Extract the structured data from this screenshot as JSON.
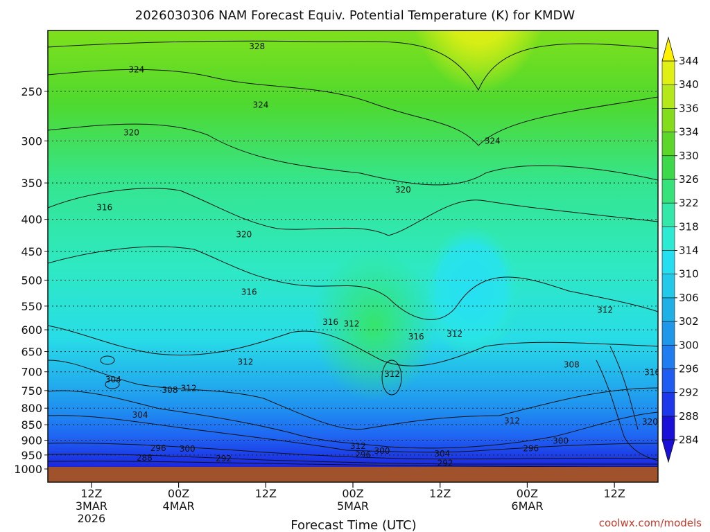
{
  "chart_data": {
    "type": "heatmap",
    "title": "2026030306 NAM Forecast Equiv. Potential Temperature (K) for KMDW",
    "xlabel": "Forecast Time (UTC)",
    "credit": "coolwx.com/models",
    "x_ticks": [
      {
        "hours": 6,
        "lines": [
          "12Z",
          "3MAR",
          "2026"
        ]
      },
      {
        "hours": 18,
        "lines": [
          "00Z",
          "4MAR"
        ]
      },
      {
        "hours": 30,
        "lines": [
          "12Z"
        ]
      },
      {
        "hours": 42,
        "lines": [
          "00Z",
          "5MAR"
        ]
      },
      {
        "hours": 54,
        "lines": [
          "12Z"
        ]
      },
      {
        "hours": 66,
        "lines": [
          "00Z",
          "6MAR"
        ]
      },
      {
        "hours": 78,
        "lines": [
          "12Z"
        ]
      }
    ],
    "y_axis": {
      "scale": "log",
      "unit": "hPa",
      "range": [
        1000,
        200
      ]
    },
    "y_ticks": [
      250,
      300,
      350,
      400,
      450,
      500,
      550,
      600,
      650,
      700,
      750,
      800,
      850,
      900,
      950,
      1000
    ],
    "colorbar": {
      "levels": [
        284,
        288,
        292,
        296,
        300,
        302,
        306,
        310,
        314,
        318,
        322,
        326,
        330,
        334,
        336,
        340,
        344
      ],
      "colors": [
        "#1a0fd6",
        "#1d37ea",
        "#1f5cf2",
        "#1f7df0",
        "#1f98ec",
        "#1fb1e6",
        "#22c9e8",
        "#25dff0",
        "#2cebd2",
        "#33e8a8",
        "#36e37a",
        "#3ed84b",
        "#5cd62a",
        "#84dd1c",
        "#b4e81a",
        "#e0f015",
        "#fff200"
      ]
    },
    "contour_labels": [
      {
        "text": "328",
        "hours": 28.8,
        "p": 212
      },
      {
        "text": "324",
        "hours": 12.2,
        "p": 231
      },
      {
        "text": "324",
        "hours": 29.3,
        "p": 263
      },
      {
        "text": "324",
        "hours": 61.2,
        "p": 300
      },
      {
        "text": "320",
        "hours": 11.5,
        "p": 291
      },
      {
        "text": "320",
        "hours": 48.9,
        "p": 359
      },
      {
        "text": "320",
        "hours": 27.0,
        "p": 423
      },
      {
        "text": "316",
        "hours": 7.8,
        "p": 383
      },
      {
        "text": "316",
        "hours": 27.7,
        "p": 522
      },
      {
        "text": "316",
        "hours": 38.9,
        "p": 583
      },
      {
        "text": "316",
        "hours": 50.7,
        "p": 615
      },
      {
        "text": "316",
        "hours": 83.2,
        "p": 701
      },
      {
        "text": "312",
        "hours": 41.8,
        "p": 587
      },
      {
        "text": "312",
        "hours": 27.2,
        "p": 675
      },
      {
        "text": "312",
        "hours": 47.4,
        "p": 706
      },
      {
        "text": "312",
        "hours": 56.0,
        "p": 609
      },
      {
        "text": "312",
        "hours": 76.7,
        "p": 558
      },
      {
        "text": "312",
        "hours": 63.9,
        "p": 838
      },
      {
        "text": "312",
        "hours": 42.7,
        "p": 919
      },
      {
        "text": "308",
        "hours": 72.1,
        "p": 682
      },
      {
        "text": "308",
        "hours": 16.8,
        "p": 748
      },
      {
        "text": "312",
        "hours": 19.4,
        "p": 744
      },
      {
        "text": "304",
        "hours": 9.0,
        "p": 720
      },
      {
        "text": "304",
        "hours": 12.7,
        "p": 820
      },
      {
        "text": "304",
        "hours": 54.3,
        "p": 945
      },
      {
        "text": "300",
        "hours": 19.2,
        "p": 929
      },
      {
        "text": "300",
        "hours": 46.0,
        "p": 936
      },
      {
        "text": "300",
        "hours": 70.6,
        "p": 902
      },
      {
        "text": "296",
        "hours": 15.2,
        "p": 926
      },
      {
        "text": "296",
        "hours": 43.4,
        "p": 949
      },
      {
        "text": "296",
        "hours": 66.5,
        "p": 928
      },
      {
        "text": "292",
        "hours": 24.2,
        "p": 962
      },
      {
        "text": "292",
        "hours": 54.7,
        "p": 979
      },
      {
        "text": "288",
        "hours": 13.3,
        "p": 960
      },
      {
        "text": "320",
        "hours": 82.9,
        "p": 841
      }
    ]
  }
}
